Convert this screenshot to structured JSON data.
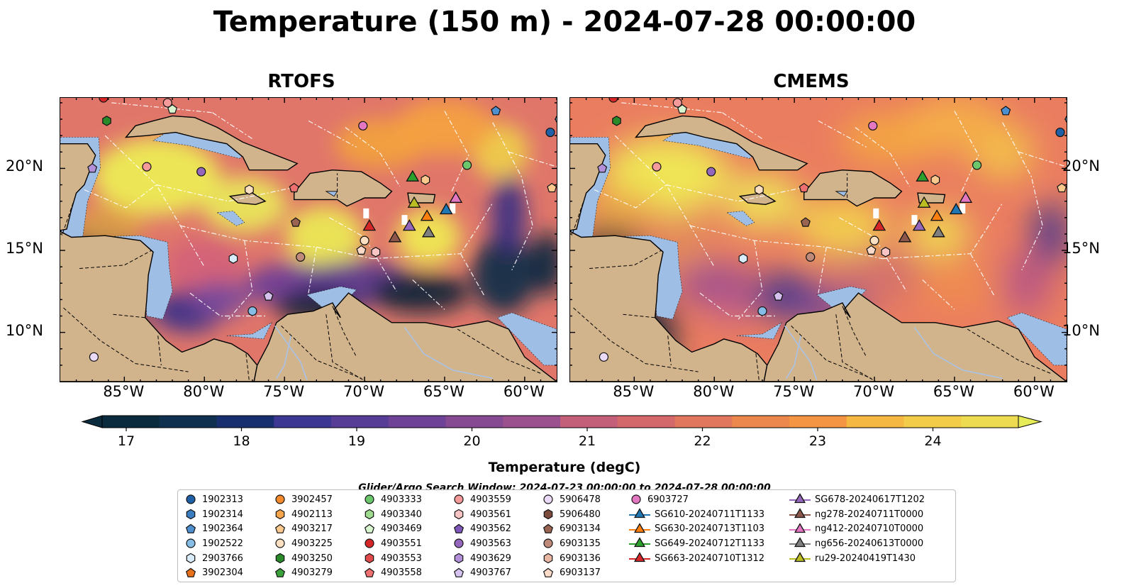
{
  "title": "Temperature (150 m) - 2024-07-28 00:00:00",
  "panels": [
    {
      "title": "RTOFS"
    },
    {
      "title": "CMEMS"
    }
  ],
  "axes": {
    "lon_ticks": [
      "85°W",
      "80°W",
      "75°W",
      "70°W",
      "65°W",
      "60°W"
    ],
    "lat_ticks": [
      "20°N",
      "15°N",
      "10°N"
    ]
  },
  "colorbar": {
    "label": "Temperature (degC)",
    "ticks": [
      "17",
      "18",
      "19",
      "20",
      "21",
      "22",
      "23",
      "24"
    ],
    "colors": [
      "#0a2a3d",
      "#10304f",
      "#172f6e",
      "#2a348f",
      "#3d3794",
      "#573d96",
      "#6e4296",
      "#854a92",
      "#9b518d",
      "#b05886",
      "#c45f7a",
      "#d4696c",
      "#e1775d",
      "#ec874d",
      "#f39543",
      "#f5a43f",
      "#f5b843",
      "#f3cc4a",
      "#eddc52",
      "#e6ec58"
    ]
  },
  "search_window": "Glider/Argo Search Window: 2024-07-23 00:00:00 to 2024-07-28 00:00:00",
  "legend": {
    "columns": [
      [
        {
          "label": "1902313",
          "shape": "circle",
          "color": "#1f5fa6"
        },
        {
          "label": "1902314",
          "shape": "hexagon",
          "color": "#3a7dc1"
        },
        {
          "label": "1902364",
          "shape": "pentagon",
          "color": "#4e8fd0"
        },
        {
          "label": "1902522",
          "shape": "circle",
          "color": "#86bde6"
        },
        {
          "label": "2903766",
          "shape": "hexagon",
          "color": "#d8ecfb"
        },
        {
          "label": "3902304",
          "shape": "pentagon",
          "color": "#e7711b"
        }
      ],
      [
        {
          "label": "3902457",
          "shape": "circle",
          "color": "#f58a2c"
        },
        {
          "label": "4902113",
          "shape": "hexagon",
          "color": "#f7a54b"
        },
        {
          "label": "4903217",
          "shape": "pentagon",
          "color": "#fbc98d"
        },
        {
          "label": "4903225",
          "shape": "circle",
          "color": "#fde0c2"
        },
        {
          "label": "4903250",
          "shape": "hexagon",
          "color": "#2a8a2a"
        },
        {
          "label": "4903279",
          "shape": "pentagon",
          "color": "#3aa03a"
        }
      ],
      [
        {
          "label": "4903333",
          "shape": "circle",
          "color": "#6cc66c"
        },
        {
          "label": "4903340",
          "shape": "hexagon",
          "color": "#9fdc8f"
        },
        {
          "label": "4903469",
          "shape": "pentagon",
          "color": "#d8f5cf"
        },
        {
          "label": "4903551",
          "shape": "circle",
          "color": "#d62728"
        },
        {
          "label": "4903553",
          "shape": "hexagon",
          "color": "#e04a4a"
        },
        {
          "label": "4903558",
          "shape": "pentagon",
          "color": "#ee7070"
        }
      ],
      [
        {
          "label": "4903559",
          "shape": "circle",
          "color": "#f49a9a"
        },
        {
          "label": "4903561",
          "shape": "hexagon",
          "color": "#f9c4c4"
        },
        {
          "label": "4903562",
          "shape": "pentagon",
          "color": "#7e57b8"
        },
        {
          "label": "4903563",
          "shape": "circle",
          "color": "#9467bd"
        },
        {
          "label": "4903629",
          "shape": "hexagon",
          "color": "#b28fd8"
        },
        {
          "label": "4903767",
          "shape": "pentagon",
          "color": "#d6c2ee"
        }
      ],
      [
        {
          "label": "5906478",
          "shape": "circle",
          "color": "#ead9f7"
        },
        {
          "label": "5906480",
          "shape": "hexagon",
          "color": "#7b4a3a"
        },
        {
          "label": "6903134",
          "shape": "pentagon",
          "color": "#9a6452"
        },
        {
          "label": "6903135",
          "shape": "circle",
          "color": "#c08a7a"
        },
        {
          "label": "6903136",
          "shape": "hexagon",
          "color": "#ebb7a5"
        },
        {
          "label": "6903137",
          "shape": "pentagon",
          "color": "#fbdac9"
        }
      ],
      [
        {
          "label": "6903727",
          "shape": "circle",
          "color": "#e377c2"
        },
        {
          "label": "SG610-20240711T1133",
          "shape": "triangle",
          "color": "#1f77b4",
          "line": true
        },
        {
          "label": "SG630-20240713T1103",
          "shape": "triangle",
          "color": "#ff7f0e",
          "line": true
        },
        {
          "label": "SG649-20240712T1133",
          "shape": "triangle",
          "color": "#2ca02c",
          "line": true
        },
        {
          "label": "SG663-20240710T1312",
          "shape": "triangle",
          "color": "#d62728",
          "line": true
        }
      ],
      [
        {
          "label": "SG678-20240617T1202",
          "shape": "triangle",
          "color": "#9467bd",
          "line": true
        },
        {
          "label": "ng278-20240711T0000",
          "shape": "triangle",
          "color": "#8c564b",
          "line": true
        },
        {
          "label": "ng412-20240710T0000",
          "shape": "triangle",
          "color": "#e377c2",
          "line": true
        },
        {
          "label": "ng656-20240613T0000",
          "shape": "triangle",
          "color": "#7f7f7f",
          "line": true
        },
        {
          "label": "ru29-20240419T1430",
          "shape": "triangle",
          "color": "#bcbd22",
          "line": true
        }
      ]
    ]
  },
  "map_markers": [
    {
      "lon": -86.3,
      "lat": 24.3,
      "shape": "circle",
      "color": "#d62728"
    },
    {
      "lon": -82.3,
      "lat": 24.0,
      "shape": "circle",
      "color": "#f49a9a"
    },
    {
      "lon": -82.0,
      "lat": 23.6,
      "shape": "pentagon",
      "color": "#d8f5cf"
    },
    {
      "lon": -86.1,
      "lat": 22.9,
      "shape": "hexagon",
      "color": "#2a8a2a"
    },
    {
      "lon": -61.8,
      "lat": 23.5,
      "shape": "pentagon",
      "color": "#4e8fd0"
    },
    {
      "lon": -70.1,
      "lat": 22.6,
      "shape": "circle",
      "color": "#e377c2"
    },
    {
      "lon": -58.4,
      "lat": 22.2,
      "shape": "circle",
      "color": "#1f5fa6"
    },
    {
      "lon": -57.8,
      "lat": 23.0,
      "shape": "circle",
      "color": "#86bde6"
    },
    {
      "lon": -87.0,
      "lat": 20.0,
      "shape": "pentagon",
      "color": "#b28fd8"
    },
    {
      "lon": -83.6,
      "lat": 20.1,
      "shape": "circle",
      "color": "#f49a9a"
    },
    {
      "lon": -80.2,
      "lat": 19.8,
      "shape": "circle",
      "color": "#9467bd"
    },
    {
      "lon": -63.6,
      "lat": 20.2,
      "shape": "circle",
      "color": "#6cc66c"
    },
    {
      "lon": -66.2,
      "lat": 19.3,
      "shape": "hexagon",
      "color": "#fbc98d"
    },
    {
      "lon": -77.2,
      "lat": 18.7,
      "shape": "hexagon",
      "color": "#fde0c2"
    },
    {
      "lon": -74.4,
      "lat": 18.8,
      "shape": "pentagon",
      "color": "#ee7070"
    },
    {
      "lon": -58.3,
      "lat": 18.8,
      "shape": "pentagon",
      "color": "#fbc98d"
    },
    {
      "lon": -74.3,
      "lat": 16.7,
      "shape": "pentagon",
      "color": "#9a6452"
    },
    {
      "lon": -70.0,
      "lat": 15.6,
      "shape": "circle",
      "color": "#fde0c2"
    },
    {
      "lon": -70.2,
      "lat": 15.0,
      "shape": "pentagon",
      "color": "#fbdac9"
    },
    {
      "lon": -69.3,
      "lat": 14.9,
      "shape": "hexagon",
      "color": "#f9c4c4"
    },
    {
      "lon": -78.2,
      "lat": 14.5,
      "shape": "hexagon",
      "color": "#d8ecfb"
    },
    {
      "lon": -74.0,
      "lat": 14.6,
      "shape": "circle",
      "color": "#c08a7a"
    },
    {
      "lon": -76.0,
      "lat": 12.2,
      "shape": "pentagon",
      "color": "#d6c2ee"
    },
    {
      "lon": -77.0,
      "lat": 11.3,
      "shape": "circle",
      "color": "#86bde6"
    },
    {
      "lon": -86.9,
      "lat": 8.5,
      "shape": "circle",
      "color": "#ead9f7"
    },
    {
      "lon": -67.0,
      "lat": 19.5,
      "shape": "triangle",
      "color": "#2ca02c"
    },
    {
      "lon": -66.9,
      "lat": 17.9,
      "shape": "triangle",
      "color": "#bcbd22"
    },
    {
      "lon": -66.1,
      "lat": 17.1,
      "shape": "triangle",
      "color": "#ff7f0e"
    },
    {
      "lon": -64.9,
      "lat": 17.5,
      "shape": "triangle",
      "color": "#1f77b4"
    },
    {
      "lon": -64.3,
      "lat": 18.2,
      "shape": "triangle",
      "color": "#e377c2"
    },
    {
      "lon": -69.7,
      "lat": 16.5,
      "shape": "triangle",
      "color": "#d62728"
    },
    {
      "lon": -67.2,
      "lat": 16.5,
      "shape": "triangle",
      "color": "#9467bd"
    },
    {
      "lon": -68.1,
      "lat": 15.8,
      "shape": "triangle",
      "color": "#8c564b"
    },
    {
      "lon": -66.0,
      "lat": 16.1,
      "shape": "triangle",
      "color": "#7f7f7f"
    }
  ]
}
